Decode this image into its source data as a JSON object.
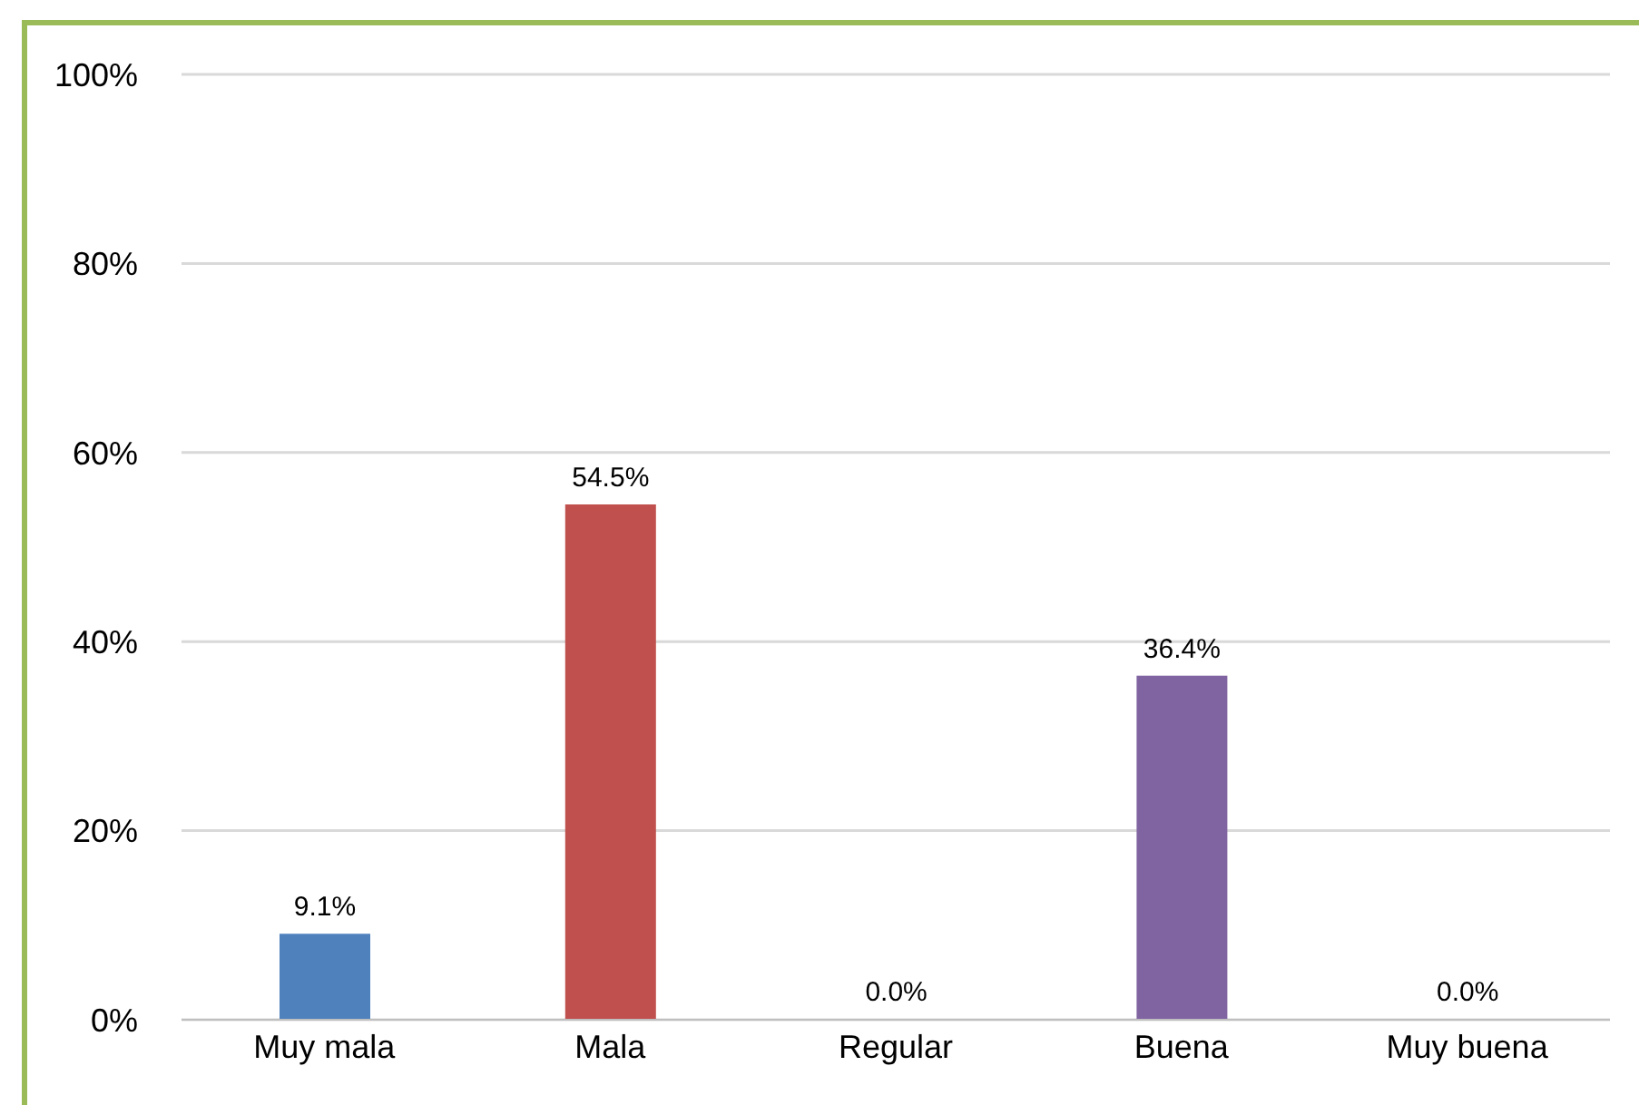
{
  "chart_data": {
    "type": "bar",
    "categories": [
      "Muy mala",
      "Mala",
      "Regular",
      "Buena",
      "Muy buena"
    ],
    "values": [
      9.1,
      54.5,
      0,
      36.4,
      0
    ],
    "colors": [
      "#4f81bd",
      "#c0504d",
      "#9bbb59",
      "#8064a2",
      "#4bacc6"
    ],
    "value_labels": [
      "9.1%",
      "54.5%",
      "0.0%",
      "36.4%",
      "0.0%"
    ],
    "ylim": [
      0,
      100
    ],
    "yticks": [
      {
        "value": 0,
        "label": "0%"
      },
      {
        "value": 20,
        "label": "20%"
      },
      {
        "value": 40,
        "label": "40%"
      },
      {
        "value": 60,
        "label": "60%"
      },
      {
        "value": 80,
        "label": "80%"
      },
      {
        "value": 100,
        "label": "100%"
      }
    ],
    "grid": "y",
    "legend": false
  }
}
